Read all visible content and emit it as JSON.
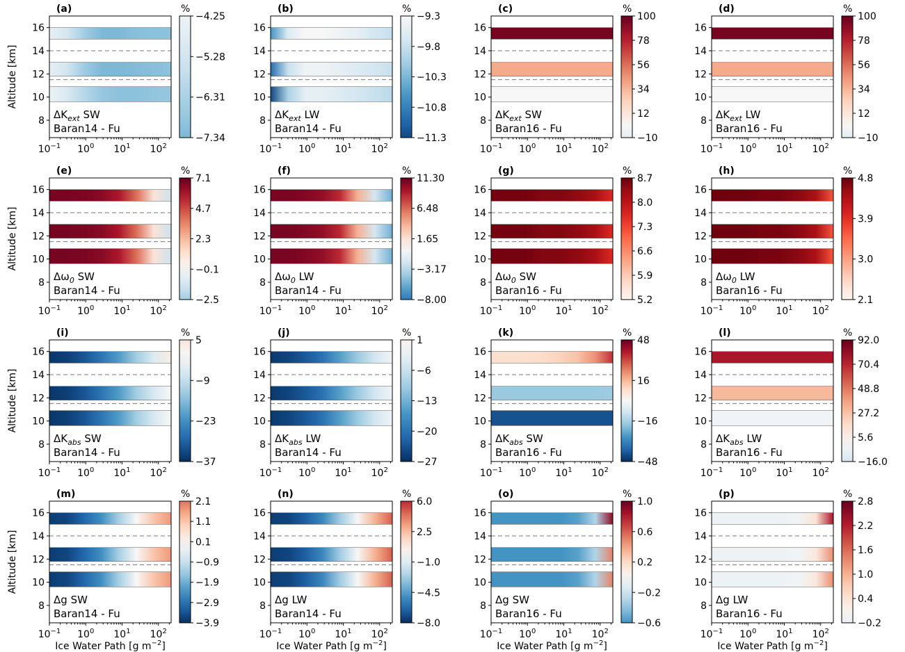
{
  "figure": {
    "ylabel": "Altitude [km]",
    "xlabel": "Ice Water Path [g m",
    "xlabel_sup": "−2",
    "xlabel_end": "]",
    "colorbar_unit": "%",
    "ytick_labels": [
      "8",
      "10",
      "12",
      "14",
      "16"
    ],
    "xtick_base": "10",
    "xtick_exps": [
      "−1",
      "0",
      "1",
      "2"
    ]
  },
  "colormaps": {
    "RdBu_r": [
      "#053061",
      "#2166ac",
      "#4393c3",
      "#92c5de",
      "#d1e5f0",
      "#f7f7f7",
      "#fddbc7",
      "#f4a582",
      "#d6604d",
      "#b2182b",
      "#67001f"
    ],
    "Reds": [
      "#fff5f0",
      "#fee0d2",
      "#fcbba1",
      "#fc9272",
      "#fb6a4a",
      "#ef3b2c",
      "#cb181d",
      "#a50f15",
      "#67000d"
    ]
  },
  "chart_data": [
    {
      "type": "heatmap",
      "letter": "(a)",
      "label_main": "ΔK",
      "label_sub": "ext",
      "label_mode": "SW",
      "model": "Baran14 - Fu",
      "cmap": "RdBu_r",
      "vmin": -11.5,
      "vmax": 3.8,
      "cticks": [
        "−4.25",
        "−5.28",
        "−6.31",
        "−7.34"
      ],
      "cb_range": [
        -7.34,
        -4.25
      ],
      "layers": [
        {
          "alt": [
            15,
            16
          ],
          "profile": [
            -4.5,
            -5.2,
            -6.5,
            -7.3,
            -7.3,
            -7.1,
            -7.0,
            -7.0
          ]
        },
        {
          "alt": [
            11.8,
            13
          ],
          "profile": [
            -4.5,
            -5.3,
            -6.6,
            -7.3,
            -7.3,
            -7.2,
            -7.1,
            -7.0
          ]
        },
        {
          "alt": [
            9.6,
            10.9
          ],
          "profile": [
            -4.3,
            -5.0,
            -6.0,
            -6.8,
            -7.0,
            -7.0,
            -6.9,
            -6.8
          ]
        }
      ]
    },
    {
      "type": "heatmap",
      "letter": "(b)",
      "label_main": "ΔK",
      "label_sub": "ext",
      "label_mode": "LW",
      "model": "Baran14 - Fu",
      "cmap": "RdBu_r",
      "vmin": -11.5,
      "vmax": -7.1,
      "cticks": [
        "−9.3",
        "−9.8",
        "−10.3",
        "−10.8",
        "−11.3"
      ],
      "cb_range": [
        -11.3,
        -9.3
      ],
      "layers": [
        {
          "alt": [
            15,
            16
          ],
          "profile": [
            -10.6,
            -9.6,
            -9.3,
            -9.3,
            -9.4,
            -9.5,
            -9.7,
            -9.8
          ]
        },
        {
          "alt": [
            11.8,
            13
          ],
          "profile": [
            -11.0,
            -9.8,
            -9.4,
            -9.4,
            -9.5,
            -9.6,
            -9.7,
            -9.8
          ]
        },
        {
          "alt": [
            9.6,
            10.9
          ],
          "profile": [
            -11.3,
            -10.0,
            -9.5,
            -9.5,
            -9.6,
            -9.7,
            -9.8,
            -9.9
          ]
        }
      ]
    },
    {
      "type": "heatmap",
      "letter": "(c)",
      "label_main": "ΔK",
      "label_sub": "ext",
      "label_mode": "SW",
      "model": "Baran16 - Fu",
      "cmap": "RdBu_r",
      "vmin": -100,
      "vmax": 100,
      "cticks": [
        "100",
        "78",
        "56",
        "34",
        "12",
        "−10"
      ],
      "cb_range": [
        -10,
        100
      ],
      "layers": [
        {
          "alt": [
            15,
            16
          ],
          "profile": [
            96,
            96,
            96,
            96,
            96,
            96,
            96,
            96
          ]
        },
        {
          "alt": [
            11.8,
            13
          ],
          "profile": [
            38,
            38,
            38,
            38,
            38,
            38,
            38,
            38
          ]
        },
        {
          "alt": [
            9.6,
            10.9
          ],
          "profile": [
            0,
            0,
            0,
            0,
            0,
            0,
            0,
            0
          ]
        }
      ]
    },
    {
      "type": "heatmap",
      "letter": "(d)",
      "label_main": "ΔK",
      "label_sub": "ext",
      "label_mode": "LW",
      "model": "Baran16 - Fu",
      "cmap": "RdBu_r",
      "vmin": -100,
      "vmax": 100,
      "cticks": [
        "100",
        "78",
        "56",
        "34",
        "12",
        "−10"
      ],
      "cb_range": [
        -10,
        100
      ],
      "layers": [
        {
          "alt": [
            15,
            16
          ],
          "profile": [
            96,
            96,
            96,
            96,
            96,
            96,
            96,
            96
          ]
        },
        {
          "alt": [
            11.8,
            13
          ],
          "profile": [
            38,
            38,
            38,
            38,
            38,
            38,
            38,
            38
          ]
        },
        {
          "alt": [
            9.6,
            10.9
          ],
          "profile": [
            0,
            0,
            0,
            0,
            0,
            0,
            0,
            0
          ]
        }
      ]
    },
    {
      "type": "heatmap",
      "letter": "(e)",
      "label_main": "Δω",
      "label_sub": "0",
      "label_mode": "SW",
      "model": "Baran14 - Fu",
      "cmap": "RdBu_r",
      "vmin": -7.1,
      "vmax": 7.1,
      "cticks": [
        "7.1",
        "4.7",
        "2.3",
        "−0.1",
        "−2.5"
      ],
      "cb_range": [
        -2.5,
        7.1
      ],
      "layers": [
        {
          "alt": [
            15,
            16
          ],
          "profile": [
            6.8,
            6.8,
            6.7,
            6.5,
            5.8,
            4.0,
            1.0,
            -1.5
          ]
        },
        {
          "alt": [
            11.8,
            13
          ],
          "profile": [
            6.8,
            6.8,
            6.7,
            6.5,
            5.8,
            4.0,
            1.0,
            -1.5
          ]
        },
        {
          "alt": [
            9.6,
            10.9
          ],
          "profile": [
            6.8,
            6.8,
            6.7,
            6.5,
            5.8,
            4.0,
            1.0,
            -1.5
          ]
        }
      ]
    },
    {
      "type": "heatmap",
      "letter": "(f)",
      "label_main": "Δω",
      "label_sub": "0",
      "label_mode": "LW",
      "model": "Baran14 - Fu",
      "cmap": "RdBu_r",
      "vmin": -11.3,
      "vmax": 11.3,
      "cticks": [
        "11.30",
        "6.48",
        "1.65",
        "−3.17",
        "−8.00"
      ],
      "cb_range": [
        -8.0,
        11.3
      ],
      "layers": [
        {
          "alt": [
            15,
            16
          ],
          "profile": [
            10.8,
            10.8,
            10.5,
            10.0,
            8.5,
            4.0,
            -2.0,
            -5.5
          ]
        },
        {
          "alt": [
            11.8,
            13
          ],
          "profile": [
            10.8,
            10.8,
            10.5,
            10.0,
            8.5,
            4.0,
            -2.0,
            -5.5
          ]
        },
        {
          "alt": [
            9.6,
            10.9
          ],
          "profile": [
            10.8,
            10.8,
            10.5,
            10.0,
            8.5,
            4.0,
            -2.0,
            -5.5
          ]
        }
      ]
    },
    {
      "type": "heatmap",
      "letter": "(g)",
      "label_main": "Δω",
      "label_sub": "0",
      "label_mode": "SW",
      "model": "Baran16 - Fu",
      "cmap": "Reds",
      "vmin": 5.2,
      "vmax": 8.7,
      "cticks": [
        "8.7",
        "8.0",
        "7.3",
        "6.6",
        "5.9",
        "5.2"
      ],
      "cb_range": [
        5.2,
        8.7
      ],
      "layers": [
        {
          "alt": [
            15,
            16
          ],
          "profile": [
            8.6,
            8.6,
            8.6,
            8.5,
            8.5,
            8.4,
            8.2,
            7.6
          ]
        },
        {
          "alt": [
            11.8,
            13
          ],
          "profile": [
            8.6,
            8.6,
            8.6,
            8.5,
            8.5,
            8.4,
            8.2,
            7.6
          ]
        },
        {
          "alt": [
            9.6,
            10.9
          ],
          "profile": [
            8.6,
            8.6,
            8.6,
            8.5,
            8.5,
            8.4,
            8.2,
            7.6
          ]
        }
      ]
    },
    {
      "type": "heatmap",
      "letter": "(h)",
      "label_main": "Δω",
      "label_sub": "0",
      "label_mode": "LW",
      "model": "Baran16 - Fu",
      "cmap": "Reds",
      "vmin": 2.1,
      "vmax": 4.8,
      "cticks": [
        "4.8",
        "3.9",
        "3.0",
        "2.1"
      ],
      "cb_range": [
        2.1,
        4.8
      ],
      "layers": [
        {
          "alt": [
            15,
            16
          ],
          "profile": [
            4.75,
            4.75,
            4.75,
            4.7,
            4.7,
            4.6,
            4.4,
            3.6
          ]
        },
        {
          "alt": [
            11.8,
            13
          ],
          "profile": [
            4.75,
            4.75,
            4.75,
            4.7,
            4.7,
            4.6,
            4.4,
            3.6
          ]
        },
        {
          "alt": [
            9.6,
            10.9
          ],
          "profile": [
            4.75,
            4.75,
            4.75,
            4.7,
            4.7,
            4.6,
            4.4,
            3.6
          ]
        }
      ]
    },
    {
      "type": "heatmap",
      "letter": "(i)",
      "label_main": "ΔK",
      "label_sub": "abs",
      "label_mode": "SW",
      "model": "Baran14 - Fu",
      "cmap": "RdBu_r",
      "vmin": -37,
      "vmax": 37,
      "cticks": [
        "5",
        "−9",
        "−23",
        "−37"
      ],
      "cb_range": [
        -37,
        5
      ],
      "layers": [
        {
          "alt": [
            15,
            16
          ],
          "profile": [
            -36,
            -35,
            -32,
            -27,
            -21,
            -13,
            -5,
            3
          ]
        },
        {
          "alt": [
            11.8,
            13
          ],
          "profile": [
            -36,
            -35,
            -32,
            -27,
            -21,
            -13,
            -6,
            0
          ]
        },
        {
          "alt": [
            9.6,
            10.9
          ],
          "profile": [
            -36,
            -35,
            -32,
            -27,
            -21,
            -13,
            -6,
            0
          ]
        }
      ]
    },
    {
      "type": "heatmap",
      "letter": "(j)",
      "label_main": "ΔK",
      "label_sub": "abs",
      "label_mode": "LW",
      "model": "Baran14 - Fu",
      "cmap": "RdBu_r",
      "vmin": -27,
      "vmax": 27,
      "cticks": [
        "1",
        "−6",
        "−13",
        "−20",
        "−27"
      ],
      "cb_range": [
        -27,
        1
      ],
      "layers": [
        {
          "alt": [
            15,
            16
          ],
          "profile": [
            -26,
            -25,
            -23,
            -20,
            -15,
            -10,
            -5,
            -1
          ]
        },
        {
          "alt": [
            11.8,
            13
          ],
          "profile": [
            -26,
            -25,
            -23,
            -20,
            -15,
            -10,
            -5,
            -1
          ]
        },
        {
          "alt": [
            9.6,
            10.9
          ],
          "profile": [
            -26,
            -25,
            -23,
            -20,
            -15,
            -10,
            -5,
            -1
          ]
        }
      ]
    },
    {
      "type": "heatmap",
      "letter": "(k)",
      "label_main": "ΔK",
      "label_sub": "abs",
      "label_mode": "SW",
      "model": "Baran16 - Fu",
      "cmap": "RdBu_r",
      "vmin": -48,
      "vmax": 48,
      "cticks": [
        "48",
        "16",
        "−16",
        "−48"
      ],
      "cb_range": [
        -48,
        48
      ],
      "layers": [
        {
          "alt": [
            15,
            16
          ],
          "profile": [
            8,
            8,
            8,
            9,
            11,
            14,
            22,
            35
          ]
        },
        {
          "alt": [
            11.8,
            13
          ],
          "profile": [
            -18,
            -18,
            -18,
            -18,
            -18,
            -18,
            -18,
            -17
          ]
        },
        {
          "alt": [
            9.6,
            10.9
          ],
          "profile": [
            -42,
            -42,
            -42,
            -42,
            -42,
            -42,
            -42,
            -42
          ]
        }
      ]
    },
    {
      "type": "heatmap",
      "letter": "(l)",
      "label_main": "ΔK",
      "label_sub": "abs",
      "label_mode": "LW",
      "model": "Baran16 - Fu",
      "cmap": "RdBu_r",
      "vmin": -92,
      "vmax": 92,
      "cticks": [
        "92.0",
        "70.4",
        "48.8",
        "27.2",
        "5.6",
        "−16.0"
      ],
      "cb_range": [
        -16,
        92
      ],
      "layers": [
        {
          "alt": [
            15,
            16
          ],
          "profile": [
            75,
            75,
            75,
            75,
            75,
            75,
            75,
            75
          ]
        },
        {
          "alt": [
            11.8,
            13
          ],
          "profile": [
            30,
            30,
            30,
            30,
            30,
            30,
            30,
            30
          ]
        },
        {
          "alt": [
            9.6,
            10.9
          ],
          "profile": [
            -3,
            -3,
            -3,
            -3,
            -3,
            -3,
            -3,
            -3
          ]
        }
      ]
    },
    {
      "type": "heatmap",
      "letter": "(m)",
      "label_main": "Δg",
      "label_sub": "",
      "label_mode": "SW",
      "model": "Baran14 - Fu",
      "cmap": "RdBu_r",
      "vmin": -3.9,
      "vmax": 3.9,
      "cticks": [
        "2.1",
        "1.1",
        "0.1",
        "−0.9",
        "−1.9",
        "−2.9",
        "−3.9"
      ],
      "cb_range": [
        -3.9,
        2.1
      ],
      "layers": [
        {
          "alt": [
            15,
            16
          ],
          "profile": [
            -3.7,
            -3.6,
            -3.1,
            -2.4,
            -1.3,
            0.0,
            1.1,
            1.7
          ]
        },
        {
          "alt": [
            11.8,
            13
          ],
          "profile": [
            -3.7,
            -3.6,
            -3.1,
            -2.4,
            -1.3,
            0.0,
            1.1,
            1.7
          ]
        },
        {
          "alt": [
            9.6,
            10.9
          ],
          "profile": [
            -3.7,
            -3.6,
            -3.1,
            -2.4,
            -1.3,
            0.0,
            1.1,
            1.7
          ]
        }
      ]
    },
    {
      "type": "heatmap",
      "letter": "(n)",
      "label_main": "Δg",
      "label_sub": "",
      "label_mode": "LW",
      "model": "Baran14 - Fu",
      "cmap": "RdBu_r",
      "vmin": -8.0,
      "vmax": 8.0,
      "cticks": [
        "6.0",
        "2.5",
        "−1.0",
        "−4.5",
        "−8.0"
      ],
      "cb_range": [
        -8.0,
        6.0
      ],
      "layers": [
        {
          "alt": [
            15,
            16
          ],
          "profile": [
            -7.6,
            -7.4,
            -6.6,
            -5.2,
            -2.8,
            0.0,
            2.8,
            4.8
          ]
        },
        {
          "alt": [
            11.8,
            13
          ],
          "profile": [
            -7.6,
            -7.4,
            -6.6,
            -5.2,
            -2.8,
            0.0,
            2.8,
            4.8
          ]
        },
        {
          "alt": [
            9.6,
            10.9
          ],
          "profile": [
            -7.6,
            -7.4,
            -6.6,
            -5.2,
            -2.8,
            0.0,
            2.8,
            4.8
          ]
        }
      ]
    },
    {
      "type": "heatmap",
      "letter": "(o)",
      "label_main": "Δg",
      "label_sub": "",
      "label_mode": "SW",
      "model": "Baran16 - Fu",
      "cmap": "RdBu_r",
      "vmin": -1.0,
      "vmax": 1.0,
      "cticks": [
        "1.0",
        "0.6",
        "0.2",
        "−0.2",
        "−0.6"
      ],
      "cb_range": [
        -0.6,
        1.0
      ],
      "layers": [
        {
          "alt": [
            15,
            16
          ],
          "profile": [
            -0.6,
            -0.6,
            -0.6,
            -0.6,
            -0.6,
            -0.55,
            -0.3,
            0.9
          ]
        },
        {
          "alt": [
            11.8,
            13
          ],
          "profile": [
            -0.6,
            -0.6,
            -0.6,
            -0.6,
            -0.6,
            -0.55,
            -0.3,
            0.5
          ]
        },
        {
          "alt": [
            9.6,
            10.9
          ],
          "profile": [
            -0.6,
            -0.6,
            -0.6,
            -0.6,
            -0.6,
            -0.55,
            -0.3,
            0.5
          ]
        }
      ]
    },
    {
      "type": "heatmap",
      "letter": "(p)",
      "label_main": "Δg",
      "label_sub": "",
      "label_mode": "LW",
      "model": "Baran16 - Fu",
      "cmap": "RdBu_r",
      "vmin": -2.8,
      "vmax": 2.8,
      "cticks": [
        "2.8",
        "2.2",
        "1.6",
        "1.0",
        "0.4",
        "−0.2"
      ],
      "cb_range": [
        -0.2,
        2.8
      ],
      "layers": [
        {
          "alt": [
            15,
            16
          ],
          "profile": [
            -0.15,
            -0.15,
            -0.15,
            -0.15,
            -0.15,
            -0.1,
            0.4,
            2.3
          ]
        },
        {
          "alt": [
            11.8,
            13
          ],
          "profile": [
            -0.15,
            -0.15,
            -0.15,
            -0.15,
            -0.15,
            -0.1,
            0.3,
            1.3
          ]
        },
        {
          "alt": [
            9.6,
            10.9
          ],
          "profile": [
            -0.15,
            -0.15,
            -0.15,
            -0.15,
            -0.15,
            -0.1,
            0.3,
            1.3
          ]
        }
      ]
    }
  ]
}
